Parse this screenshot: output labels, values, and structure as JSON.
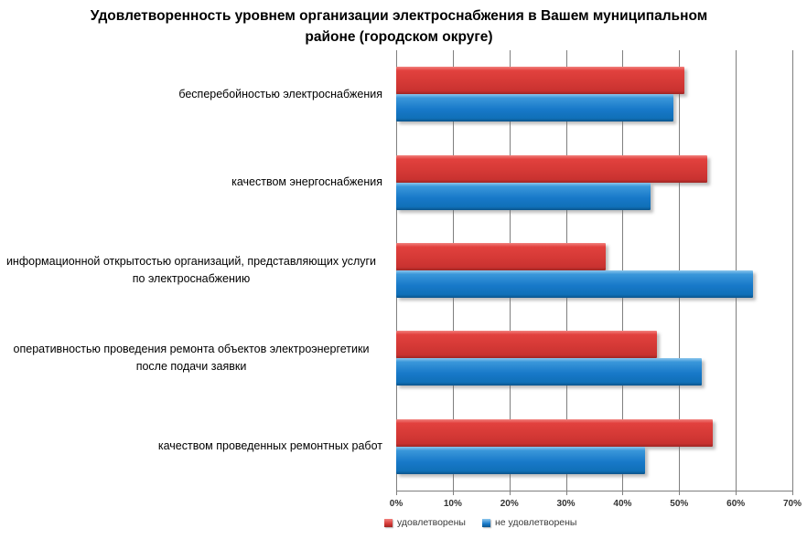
{
  "header": {
    "title_line1": "Удовлетворенность уровнем организации электроснабжения в Вашем муниципальном",
    "title_line2": "районе (городском округе)"
  },
  "chart_data": {
    "type": "bar",
    "orientation": "horizontal",
    "title": "Удовлетворенность уровнем организации электроснабжения в Вашем муниципальном районе (городском округе)",
    "categories": [
      "бесперебойностью электроснабжения",
      "качеством энергоснабжения",
      "информационной открытостью организаций, представляющих услуги по электроснабжению",
      "оперативностью проведения ремонта объектов электроэнергетики после подачи заявки",
      "качеством проведенных ремонтных работ"
    ],
    "series": [
      {
        "name": "удовлетворены",
        "color": "#d53936",
        "values": [
          51,
          55,
          37,
          46,
          56
        ]
      },
      {
        "name": "не удовлетворены",
        "color": "#1879c9",
        "values": [
          49,
          45,
          63,
          54,
          44
        ]
      }
    ],
    "value_unit": "%",
    "xlim": [
      0,
      70
    ],
    "x_tick_step": 10,
    "x_ticks": [
      "0%",
      "10%",
      "20%",
      "30%",
      "40%",
      "50%",
      "60%",
      "70%"
    ],
    "grid": true,
    "legend_position": "bottom"
  },
  "colors": {
    "satisfied_bar": "#d53936",
    "unsatisfied_bar": "#1879c9",
    "gridline": "#7f7f7f",
    "background": "#ffffff"
  }
}
